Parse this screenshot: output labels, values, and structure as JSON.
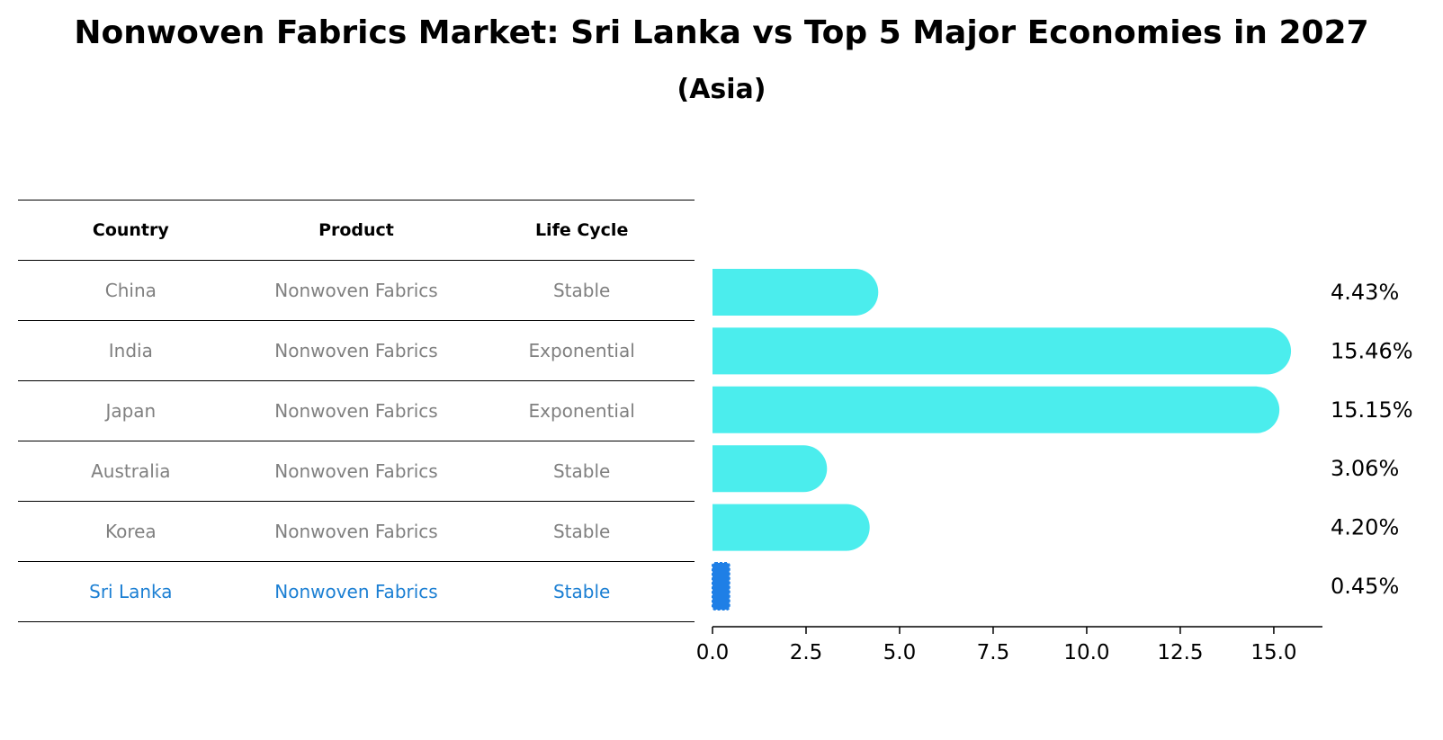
{
  "title": "Nonwoven Fabrics Market: Sri Lanka vs Top 5 Major Economies in 2027",
  "subtitle": "(Asia)",
  "table": {
    "headers": [
      "Country",
      "Product",
      "Life Cycle"
    ],
    "rows": [
      {
        "country": "China",
        "product": "Nonwoven Fabrics",
        "life_cycle": "Stable"
      },
      {
        "country": "India",
        "product": "Nonwoven Fabrics",
        "life_cycle": "Exponential"
      },
      {
        "country": "Japan",
        "product": "Nonwoven Fabrics",
        "life_cycle": "Exponential"
      },
      {
        "country": "Australia",
        "product": "Nonwoven Fabrics",
        "life_cycle": "Stable"
      },
      {
        "country": "Korea",
        "product": "Nonwoven Fabrics",
        "life_cycle": "Stable"
      },
      {
        "country": "Sri Lanka",
        "product": "Nonwoven Fabrics",
        "life_cycle": "Stable"
      }
    ]
  },
  "colors": {
    "bar": "#4beded",
    "highlight_bar": "#1f7fe6",
    "highlight_text": "#1b7fd3",
    "muted_text": "#808080"
  },
  "chart_data": {
    "type": "bar",
    "orientation": "horizontal",
    "categories": [
      "China",
      "India",
      "Japan",
      "Australia",
      "Korea",
      "Sri Lanka"
    ],
    "values": [
      4.43,
      15.46,
      15.15,
      3.06,
      4.2,
      0.45
    ],
    "value_labels": [
      "4.43%",
      "15.46%",
      "15.15%",
      "3.06%",
      "4.20%",
      "0.45%"
    ],
    "highlight": "Sri Lanka",
    "xlim": [
      0,
      16.3
    ],
    "xticks": [
      0.0,
      2.5,
      5.0,
      7.5,
      10.0,
      12.5,
      15.0
    ],
    "xtick_labels": [
      "0.0",
      "2.5",
      "5.0",
      "7.5",
      "10.0",
      "12.5",
      "15.0"
    ],
    "grid": false
  }
}
